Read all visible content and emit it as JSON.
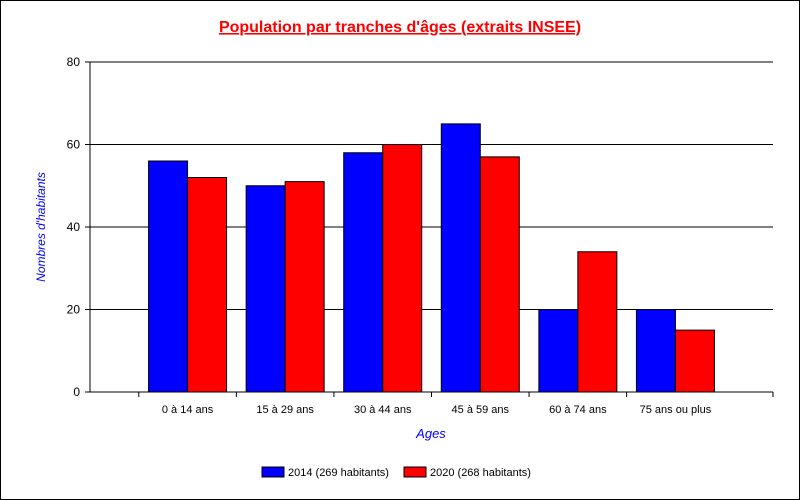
{
  "chart_data": {
    "type": "bar",
    "title": "Population par tranches d'âges (extraits INSEE)",
    "xlabel": "Ages",
    "ylabel": "Nombres d'habitants",
    "categories": [
      "0 à 14 ans",
      "15 à 29 ans",
      "30 à 44 ans",
      "45 à 59 ans",
      "60 à 74 ans",
      "75 ans ou plus"
    ],
    "series": [
      {
        "name": "2014 (269 habitants)",
        "color": "#0000FF",
        "values": [
          56,
          50,
          58,
          65,
          20,
          20
        ]
      },
      {
        "name": "2020 (268 habitants)",
        "color": "#FF0000",
        "values": [
          52,
          51,
          60,
          57,
          34,
          15
        ]
      }
    ],
    "ylim": [
      0,
      80
    ],
    "yticks": [
      0,
      20,
      40,
      60,
      80
    ],
    "grid": true,
    "legend_position": "bottom",
    "title_color": "#FF0000",
    "axis_label_color": "#0000FF"
  }
}
